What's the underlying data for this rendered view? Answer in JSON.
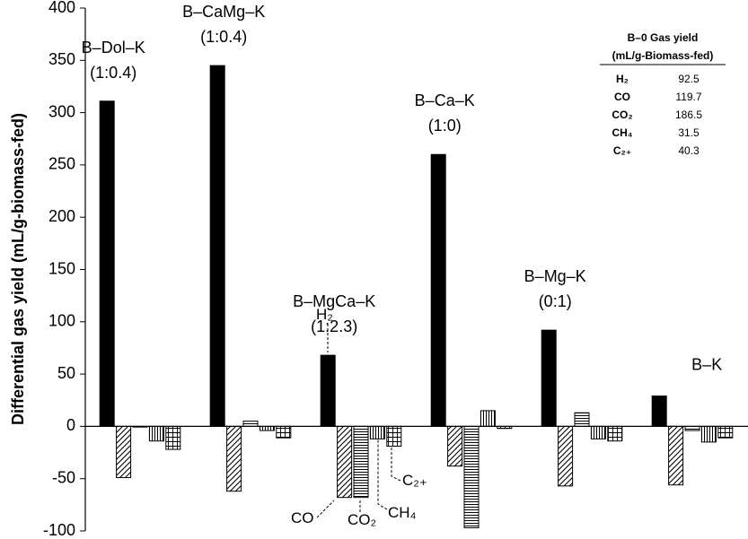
{
  "colors": {
    "bar_stroke": "#000000",
    "h2_fill": "#000000",
    "pattern_fill": "#ffffff"
  },
  "chart_data": {
    "type": "bar",
    "ylabel": "Differential gas yield (mL/g-biomass-fed)",
    "xlabel": "",
    "title": "",
    "ylim": [
      -100,
      400
    ],
    "yticks": [
      -100,
      -50,
      0,
      50,
      100,
      150,
      200,
      250,
      300,
      350,
      400
    ],
    "grid": false,
    "categories": [
      {
        "name": "B–Dol–K",
        "ratio": "(1:0.4)"
      },
      {
        "name": "B–CaMg–K",
        "ratio": "(1:0.4)"
      },
      {
        "name": "B–MgCa–K",
        "ratio": "(1:2.3)"
      },
      {
        "name": "B–Ca–K",
        "ratio": "(1:0)"
      },
      {
        "name": "B–Mg–K",
        "ratio": "(0:1)"
      },
      {
        "name": "B–K",
        "ratio": ""
      }
    ],
    "series": [
      {
        "name": "H₂",
        "pattern": "solid",
        "values": [
          311,
          345,
          68,
          260,
          92,
          29
        ]
      },
      {
        "name": "CO",
        "pattern": "diagonal",
        "values": [
          -49,
          -62,
          -68,
          -38,
          -57,
          -56
        ]
      },
      {
        "name": "CO₂",
        "pattern": "horizontal",
        "values": [
          0,
          5,
          -68,
          -97,
          13,
          -4
        ]
      },
      {
        "name": "CH₄",
        "pattern": "vertical",
        "values": [
          -14,
          -4,
          -12,
          15,
          -12,
          -15
        ]
      },
      {
        "name": "C₂₊",
        "pattern": "grid",
        "values": [
          -22,
          -11,
          -19,
          -2,
          -14,
          -11
        ]
      }
    ],
    "annotations": [
      {
        "text": "H₂"
      },
      {
        "text": "CO"
      },
      {
        "text": "CO₂"
      },
      {
        "text": "CH₄"
      },
      {
        "text": "C₂₊"
      }
    ],
    "inset_table": {
      "title_line1": "B–0 Gas yield",
      "title_line2": "(mL/g-Biomass-fed)",
      "rows": [
        {
          "gas": "H₂",
          "value": "92.5"
        },
        {
          "gas": "CO",
          "value": "119.7"
        },
        {
          "gas": "CO₂",
          "value": "186.5"
        },
        {
          "gas": "CH₄",
          "value": "31.5"
        },
        {
          "gas": "C₂₊",
          "value": "40.3"
        }
      ]
    }
  }
}
